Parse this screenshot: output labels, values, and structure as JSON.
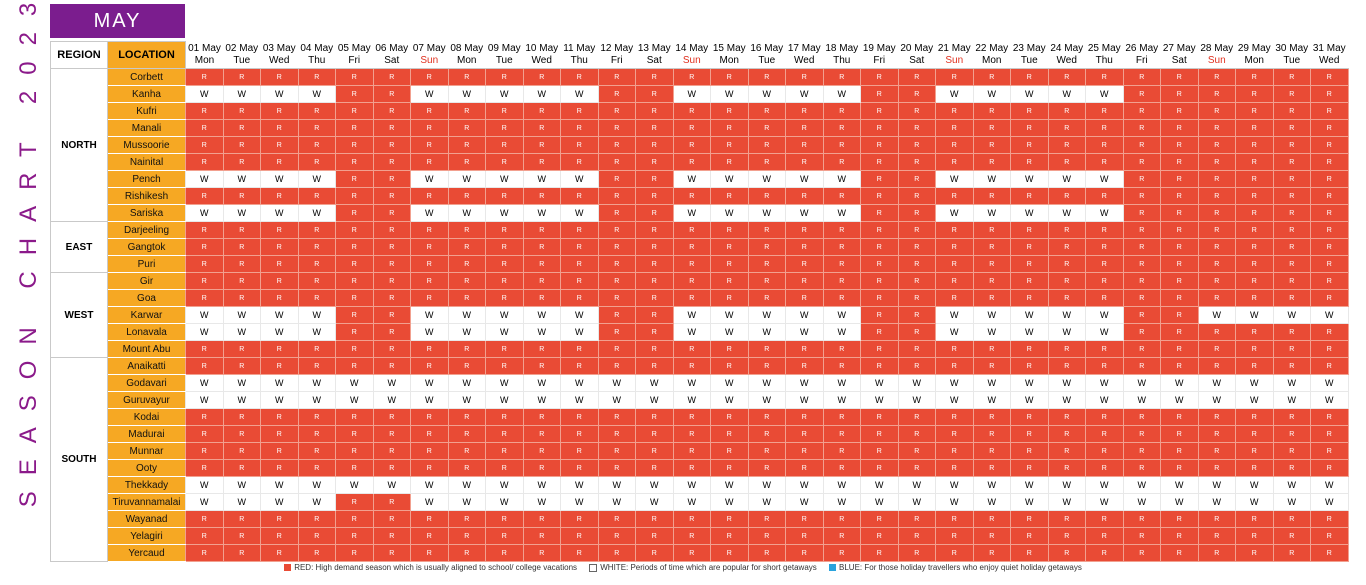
{
  "side_title": "SEASON CHART 2023",
  "month": "MAY",
  "headers": {
    "region": "REGION",
    "location": "LOCATION"
  },
  "colors": {
    "red": "#e94b35",
    "white": "#ffffff",
    "blue": "#29a3dd",
    "orange": "#f6a823",
    "purple": "#7b1d8e"
  },
  "days": [
    {
      "date": "01 May",
      "weekday": "Mon"
    },
    {
      "date": "02 May",
      "weekday": "Tue"
    },
    {
      "date": "03 May",
      "weekday": "Wed"
    },
    {
      "date": "04 May",
      "weekday": "Thu"
    },
    {
      "date": "05 May",
      "weekday": "Fri"
    },
    {
      "date": "06 May",
      "weekday": "Sat"
    },
    {
      "date": "07 May",
      "weekday": "Sun"
    },
    {
      "date": "08 May",
      "weekday": "Mon"
    },
    {
      "date": "09 May",
      "weekday": "Tue"
    },
    {
      "date": "10 May",
      "weekday": "Wed"
    },
    {
      "date": "11 May",
      "weekday": "Thu"
    },
    {
      "date": "12 May",
      "weekday": "Fri"
    },
    {
      "date": "13 May",
      "weekday": "Sat"
    },
    {
      "date": "14 May",
      "weekday": "Sun"
    },
    {
      "date": "15 May",
      "weekday": "Mon"
    },
    {
      "date": "16 May",
      "weekday": "Tue"
    },
    {
      "date": "17 May",
      "weekday": "Wed"
    },
    {
      "date": "18 May",
      "weekday": "Thu"
    },
    {
      "date": "19 May",
      "weekday": "Fri"
    },
    {
      "date": "20 May",
      "weekday": "Sat"
    },
    {
      "date": "21 May",
      "weekday": "Sun"
    },
    {
      "date": "22 May",
      "weekday": "Mon"
    },
    {
      "date": "23 May",
      "weekday": "Tue"
    },
    {
      "date": "24 May",
      "weekday": "Wed"
    },
    {
      "date": "25 May",
      "weekday": "Thu"
    },
    {
      "date": "26 May",
      "weekday": "Fri"
    },
    {
      "date": "27 May",
      "weekday": "Sat"
    },
    {
      "date": "28 May",
      "weekday": "Sun"
    },
    {
      "date": "29 May",
      "weekday": "Mon"
    },
    {
      "date": "30 May",
      "weekday": "Tue"
    },
    {
      "date": "31 May",
      "weekday": "Wed"
    }
  ],
  "regions": [
    {
      "name": "NORTH",
      "locations": [
        {
          "name": "Corbett",
          "values": "RRRRRRRRRRRRRRRRRRRRRRRRRRRRRRR"
        },
        {
          "name": "Kanha",
          "values": "WWWWRRWWWWWRRWWWWWRRWWWWWRRRRRR"
        },
        {
          "name": "Kufri",
          "values": "RRRRRRRRRRRRRRRRRRRRRRRRRRRRRRR"
        },
        {
          "name": "Manali",
          "values": "RRRRRRRRRRRRRRRRRRRRRRRRRRRRRRR"
        },
        {
          "name": "Mussoorie",
          "values": "RRRRRRRRRRRRRRRRRRRRRRRRRRRRRRR"
        },
        {
          "name": "Nainital",
          "values": "RRRRRRRRRRRRRRRRRRRRRRRRRRRRRRR"
        },
        {
          "name": "Pench",
          "values": "WWWWRRWWWWWRRWWWWWRRWWWWWRRRRRR"
        },
        {
          "name": "Rishikesh",
          "values": "RRRRRRRRRRRRRRRRRRRRRRRRRRRRRRR"
        },
        {
          "name": "Sariska",
          "values": "WWWWRRWWWWWRRWWWWWRRWWWWWRRRRRR"
        }
      ]
    },
    {
      "name": "EAST",
      "locations": [
        {
          "name": "Darjeeling",
          "values": "RRRRRRRRRRRRRRRRRRRRRRRRRRRRRRR"
        },
        {
          "name": "Gangtok",
          "values": "RRRRRRRRRRRRRRRRRRRRRRRRRRRRRRR"
        },
        {
          "name": "Puri",
          "values": "RRRRRRRRRRRRRRRRRRRRRRRRRRRRRRR"
        }
      ]
    },
    {
      "name": "WEST",
      "locations": [
        {
          "name": "Gir",
          "values": "RRRRRRRRRRRRRRRRRRRRRRRRRRRRRRR"
        },
        {
          "name": "Goa",
          "values": "RRRRRRRRRRRRRRRRRRRRRRRRRRRRRRR"
        },
        {
          "name": "Karwar",
          "values": "WWWWRRWWWWWRRWWWWWRRWWWWWRRWWWW"
        },
        {
          "name": "Lonavala",
          "values": "WWWWRRWWWWWRRWWWWWRRWWWWWRRRRRR"
        },
        {
          "name": "Mount Abu",
          "values": "RRRRRRRRRRRRRRRRRRRRRRRRRRRRRRR"
        }
      ]
    },
    {
      "name": "SOUTH",
      "locations": [
        {
          "name": "Anaikatti",
          "values": "RRRRRRRRRRRRRRRRRRRRRRRRRRRRRRR"
        },
        {
          "name": "Godavari",
          "values": "WWWWWWWWWWWWWWWWWWWWWWWWWWWWWWW"
        },
        {
          "name": "Guruvayur",
          "values": "WWWWWWWWWWWWWWWWWWWWWWWWWWWWWWW"
        },
        {
          "name": "Kodai",
          "values": "RRRRRRRRRRRRRRRRRRRRRRRRRRRRRRR"
        },
        {
          "name": "Madurai",
          "values": "RRRRRRRRRRRRRRRRRRRRRRRRRRRRRRR"
        },
        {
          "name": "Munnar",
          "values": "RRRRRRRRRRRRRRRRRRRRRRRRRRRRRRR"
        },
        {
          "name": "Ooty",
          "values": "RRRRRRRRRRRRRRRRRRRRRRRRRRRRRRR"
        },
        {
          "name": "Thekkady",
          "values": "WWWWWWWWWWWWWWWWWWWWWWWWWWWWWWW"
        },
        {
          "name": "Tiruvannamalai",
          "values": "WWWWRRWWWWWWWWWWWWWWWWWWWWWWWWW"
        },
        {
          "name": "Wayanad",
          "values": "RRRRRRRRRRRRRRRRRRRRRRRRRRRRRRR"
        },
        {
          "name": "Yelagiri",
          "values": "RRRRRRRRRRRRRRRRRRRRRRRRRRRRRRR"
        },
        {
          "name": "Yercaud",
          "values": "RRRRRRRRRRRRRRRRRRRRRRRRRRRRRRR"
        }
      ]
    }
  ],
  "legend": {
    "red": "RED: High demand season which is usually aligned to school/ college vacations",
    "white": "WHITE: Periods of time which are popular for short getaways",
    "blue": "BLUE: For those holiday travellers who enjoy quiet holiday getaways"
  }
}
